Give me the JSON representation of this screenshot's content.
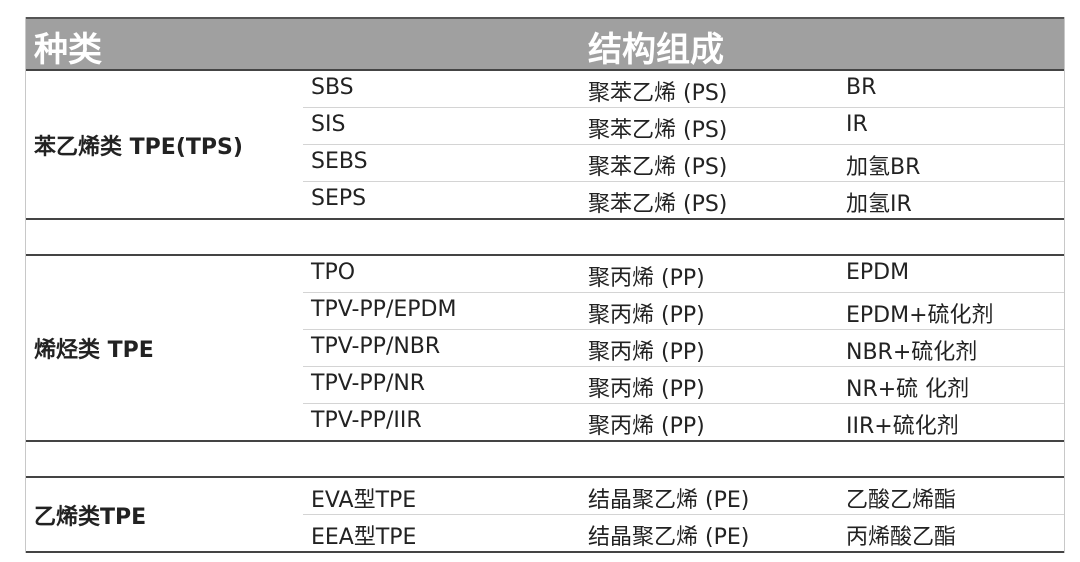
{
  "header": {
    "col_category": "种类",
    "col_structure": "结构组成"
  },
  "groups": [
    {
      "category": "苯乙烯类 TPE(TPS)",
      "rows": [
        {
          "name": "SBS",
          "hard": "聚苯乙烯 (PS)",
          "soft": "BR"
        },
        {
          "name": "SIS",
          "hard": "聚苯乙烯 (PS)",
          "soft": "IR"
        },
        {
          "name": "SEBS",
          "hard": "聚苯乙烯 (PS)",
          "soft": "加氢BR"
        },
        {
          "name": "SEPS",
          "hard": "聚苯乙烯 (PS)",
          "soft": "加氢IR"
        }
      ]
    },
    {
      "category": "烯烃类 TPE",
      "rows": [
        {
          "name": "TPO",
          "hard": "聚丙烯 (PP)",
          "soft": "EPDM"
        },
        {
          "name": "TPV-PP/EPDM",
          "hard": "聚丙烯 (PP)",
          "soft": "EPDM+硫化剂"
        },
        {
          "name": "TPV-PP/NBR",
          "hard": "聚丙烯 (PP)",
          "soft": "NBR+硫化剂"
        },
        {
          "name": "TPV-PP/NR",
          "hard": "聚丙烯 (PP)",
          "soft": "NR+硫 化剂"
        },
        {
          "name": "TPV-PP/IIR",
          "hard": "聚丙烯 (PP)",
          "soft": "IIR+硫化剂"
        }
      ]
    },
    {
      "category": "乙烯类TPE",
      "rows": [
        {
          "name": "EVA型TPE",
          "hard": "结晶聚乙烯 (PE)",
          "soft": "乙酸乙烯酯"
        },
        {
          "name": "EEA型TPE",
          "hard": "结晶聚乙烯 (PE)",
          "soft": "丙烯酸乙酯"
        }
      ]
    }
  ]
}
